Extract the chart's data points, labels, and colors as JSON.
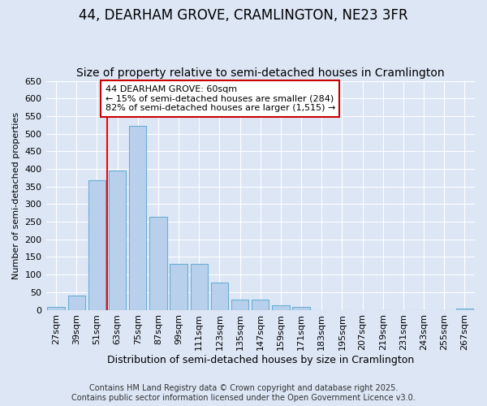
{
  "title1": "44, DEARHAM GROVE, CRAMLINGTON, NE23 3FR",
  "title2": "Size of property relative to semi-detached houses in Cramlington",
  "xlabel": "Distribution of semi-detached houses by size in Cramlington",
  "ylabel": "Number of semi-detached properties",
  "categories": [
    "27sqm",
    "39sqm",
    "51sqm",
    "63sqm",
    "75sqm",
    "87sqm",
    "99sqm",
    "111sqm",
    "123sqm",
    "135sqm",
    "147sqm",
    "159sqm",
    "171sqm",
    "183sqm",
    "195sqm",
    "207sqm",
    "219sqm",
    "231sqm",
    "243sqm",
    "255sqm",
    "267sqm"
  ],
  "values": [
    8,
    40,
    367,
    395,
    523,
    265,
    130,
    130,
    77,
    28,
    28,
    12,
    9,
    0,
    0,
    0,
    0,
    0,
    0,
    0,
    4
  ],
  "bar_color": "#b8d0eb",
  "bar_edge_color": "#6aaed6",
  "red_line_x": 2.5,
  "annotation_title": "44 DEARHAM GROVE: 60sqm",
  "annotation_line1": "← 15% of semi-detached houses are smaller (284)",
  "annotation_line2": "82% of semi-detached houses are larger (1,515) →",
  "annotation_box_color": "#ffffff",
  "annotation_box_edge": "#cc0000",
  "ylim": [
    0,
    650
  ],
  "yticks": [
    0,
    50,
    100,
    150,
    200,
    250,
    300,
    350,
    400,
    450,
    500,
    550,
    600,
    650
  ],
  "background_color": "#dce6f5",
  "plot_bg_color": "#dce6f5",
  "grid_color": "#ffffff",
  "footer1": "Contains HM Land Registry data © Crown copyright and database right 2025.",
  "footer2": "Contains public sector information licensed under the Open Government Licence v3.0.",
  "title1_fontsize": 12,
  "title2_fontsize": 10,
  "xlabel_fontsize": 9,
  "ylabel_fontsize": 8,
  "tick_fontsize": 8,
  "footer_fontsize": 7
}
